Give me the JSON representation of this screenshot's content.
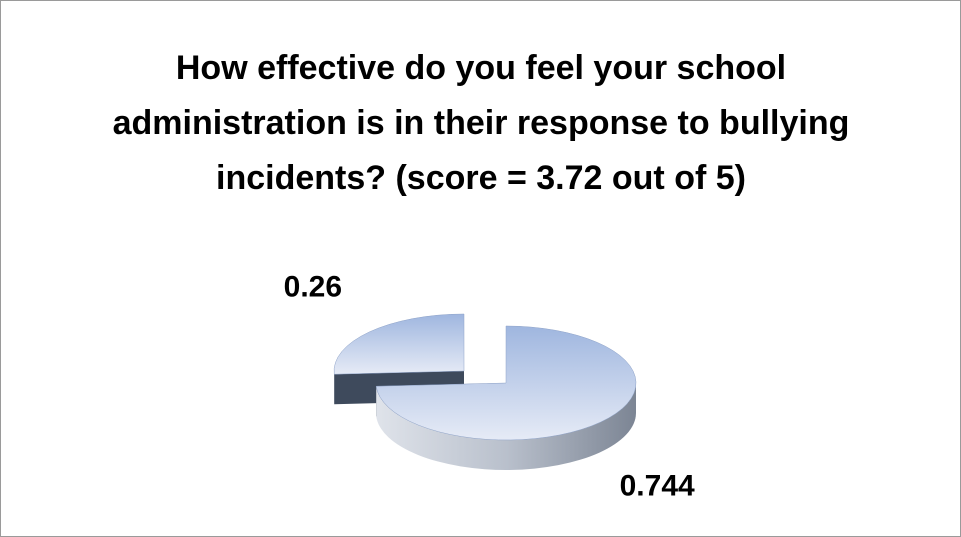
{
  "chart_data": {
    "type": "pie3d",
    "title": "How effective do you feel your school administration is in their response to bullying incidents? (score = 3.72 out of 5)",
    "categories": [
      null,
      null
    ],
    "values": [
      0.744,
      0.26
    ]
  }
}
